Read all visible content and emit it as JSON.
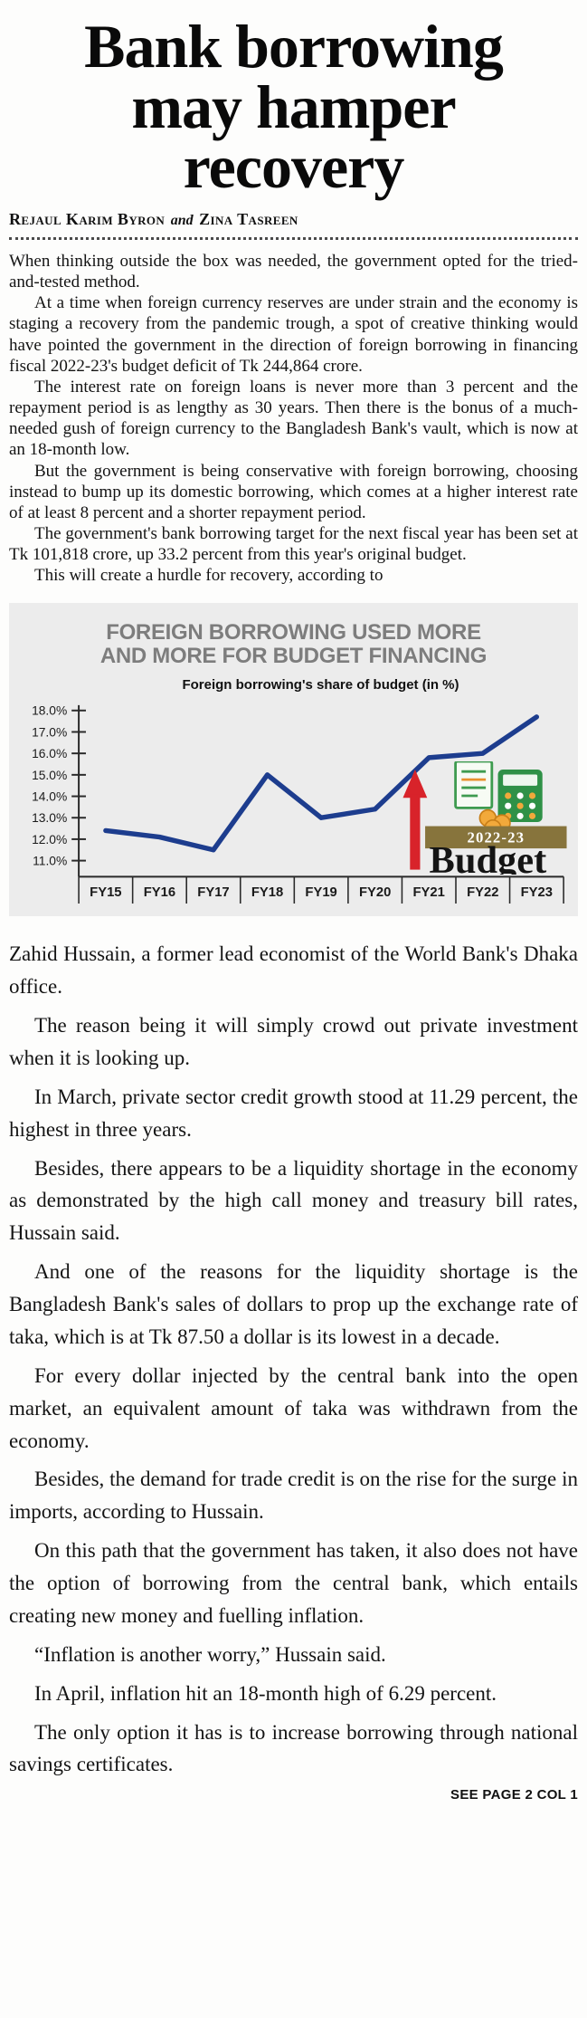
{
  "article": {
    "title_lines": [
      "Bank borrowing",
      "may hamper",
      "recovery"
    ],
    "byline": {
      "author1": "Rejaul Karim Byron",
      "conjunction": "and",
      "author2": "Zina Tasreen"
    },
    "body_before": [
      "When thinking outside the box was needed, the government opted for the tried-and-tested method.",
      "At a time when foreign currency reserves are under strain and the economy is staging a recovery from the pandemic trough, a spot of creative thinking would have pointed the government in the direction of foreign borrowing in financing fiscal 2022-23's budget deficit of Tk 244,864 crore.",
      "The interest rate on foreign loans is never more than 3 percent and the repayment period is as lengthy as 30 years. Then there is the bonus of a much-needed gush of foreign currency to the Bangladesh Bank's vault, which is now at an 18-month low.",
      "But the government is being conservative with foreign borrowing, choosing instead to bump up its domestic borrowing, which comes at a higher interest rate of at least 8 percent and a shorter repayment period.",
      "The government's bank borrowing target for the next fiscal year has been set at Tk 101,818 crore, up 33.2 percent from this year's original budget.",
      "This will create a hurdle for recovery, according to"
    ],
    "body_after": [
      "Zahid Hussain, a former lead economist of the World Bank's Dhaka office.",
      "The reason being it will simply crowd out private investment when it is looking up.",
      "In March, private sector credit growth stood at 11.29 percent, the highest in three years.",
      "Besides, there appears to be a liquidity shortage in the economy as demonstrated by the high call money and treasury bill rates, Hussain said.",
      "And one of the reasons for the liquidity shortage is the Bangladesh Bank's sales of dollars to prop up the exchange rate of taka, which is at Tk 87.50 a dollar is its lowest in a decade.",
      "For every dollar injected by the central bank into the open market, an equivalent amount of taka was withdrawn from the economy.",
      "Besides, the demand for trade credit is on the rise for the surge in imports, according to Hussain.",
      "On this path that the government has taken, it also does not have the option of borrowing from the central bank, which entails creating new money and fuelling inflation.",
      "“Inflation is another worry,” Hussain said.",
      "In April, inflation hit an 18-month high of 6.29 percent.",
      "The only option it has is to increase borrowing through national savings certificates."
    ],
    "continuation": "SEE PAGE 2 COL 1"
  },
  "chart_data": {
    "type": "line",
    "title": "FOREIGN BORROWING USED MORE AND MORE FOR BUDGET FINANCING",
    "subtitle": "Foreign borrowing's share of budget (in %)",
    "categories": [
      "FY15",
      "FY16",
      "FY17",
      "FY18",
      "FY19",
      "FY20",
      "FY21",
      "FY22",
      "FY23"
    ],
    "values": [
      12.4,
      12.1,
      11.5,
      15.0,
      13.0,
      13.4,
      15.8,
      16.0,
      17.7
    ],
    "xlabel": "",
    "ylabel": "",
    "ylim": [
      11.0,
      18.0
    ],
    "ytick_step": 1.0,
    "ytick_labels": [
      "11.0%",
      "12.0%",
      "13.0%",
      "14.0%",
      "15.0%",
      "16.0%",
      "17.0%",
      "18.0%"
    ],
    "grid": false,
    "legend": "none",
    "line_color": "#1d3d8e",
    "annotation": {
      "badge_year": "2022-23",
      "badge_word": "Budget"
    }
  },
  "colors": {
    "chart_bg": "#ececec",
    "chart_title": "#7d7d7d",
    "line_blue": "#1d3d8e",
    "arrow_red": "#d8232a",
    "banner_olive": "#87743c"
  }
}
